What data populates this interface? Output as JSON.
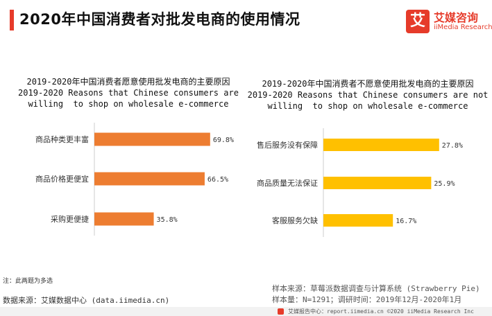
{
  "header": {
    "title": "2020年中国消费者对批发电商的使用情况"
  },
  "logo": {
    "mark": "艾",
    "name_cn": "艾媒咨询",
    "name_en": "iiMedia Research"
  },
  "colors": {
    "accent": "#e63b2a",
    "left_bar": "#ed7d31",
    "right_bar": "#ffc000"
  },
  "chart_data": [
    {
      "type": "bar",
      "orientation": "horizontal",
      "title_cn": "2019-2020年中国消费者愿意使用批发电商的主要原因",
      "title_en_1": "2019-2020 Reasons that Chinese consumers are",
      "title_en_2": "willing  to shop on wholesale e-commerce",
      "categories": [
        "商品种类更丰富",
        "商品价格更便宜",
        "采购更便捷"
      ],
      "values": [
        69.8,
        66.5,
        35.8
      ],
      "value_labels": [
        "69.8%",
        "66.5%",
        "35.8%"
      ],
      "unit": "%",
      "color": "#ed7d31"
    },
    {
      "type": "bar",
      "orientation": "horizontal",
      "title_cn": "2019-2020年中国消费者不愿意使用批发电商的主要原因",
      "title_en_1": "2019-2020 Reasons that Chinese consumers are not",
      "title_en_2": "willing  to shop on wholesale e-commerce",
      "categories": [
        "售后服务没有保障",
        "商品质量无法保证",
        "客服服务欠缺"
      ],
      "values": [
        27.8,
        25.9,
        16.7
      ],
      "value_labels": [
        "27.8%",
        "25.9%",
        "16.7%"
      ],
      "unit": "%",
      "color": "#ffc000"
    }
  ],
  "footer": {
    "note": "注：此两题为多选",
    "source": "数据来源：艾媒数据中心 (data.iimedia.cn)",
    "sample_source": "样本来源：草莓派数据调查与计算系统 (Strawberry Pie)",
    "sample_size": "样本量：N=1291；调研时间：2019年12月-2020年1月",
    "bottom": "艾媒报告中心：report.iimedia.cn  ©2020  iiMedia Research  Inc"
  }
}
